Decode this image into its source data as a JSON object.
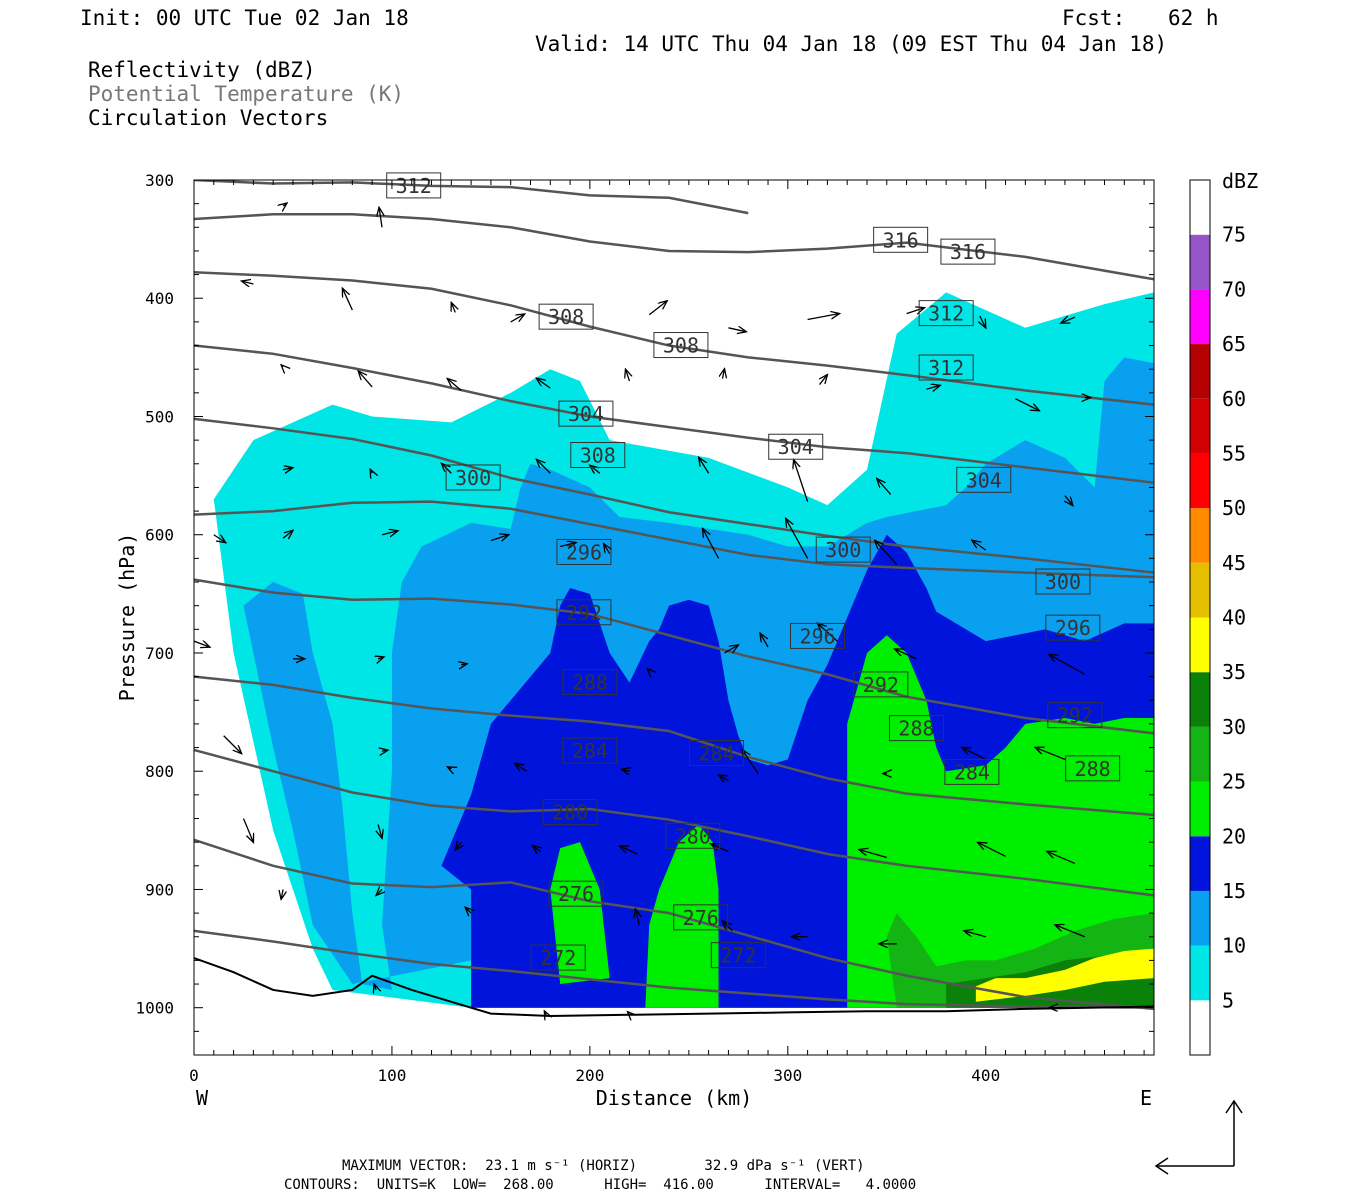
{
  "header": {
    "init": "Init: 00 UTC Tue 02 Jan 18",
    "fcst_label": "Fcst:",
    "fcst_value": "62 h",
    "valid": "Valid: 14 UTC Thu 04 Jan 18 (09 EST Thu 04 Jan 18)",
    "fields": [
      "Reflectivity (dBZ)",
      "Potential Temperature (K)",
      "Circulation Vectors"
    ]
  },
  "footer": {
    "line1": "MAXIMUM VECTOR:  23.1 m s⁻¹ (HORIZ)        32.9 dPa s⁻¹ (VERT)",
    "line2": "CONTOURS:  UNITS=K  LOW=  268.00      HIGH=  416.00      INTERVAL=   4.0000"
  },
  "chart_data": {
    "type": "heatmap",
    "xlabel": "Distance (km)",
    "ylabel": "Pressure (hPa)",
    "xlim": [
      0,
      485
    ],
    "ylim": [
      1040,
      300
    ],
    "x_ticks": [
      0,
      100,
      200,
      300,
      400
    ],
    "y_ticks": [
      300,
      400,
      500,
      600,
      700,
      800,
      900,
      1000
    ],
    "x_end_labels": [
      "W",
      "E"
    ],
    "colorbar": {
      "title": "dBZ",
      "levels": [
        5,
        10,
        15,
        20,
        25,
        30,
        35,
        40,
        45,
        50,
        55,
        60,
        65,
        70,
        75
      ],
      "colors": [
        "#ffffff",
        "#00e6e6",
        "#0aa0f0",
        "#0014dc",
        "#00ee00",
        "#14b414",
        "#0a820a",
        "#ffff00",
        "#e6be00",
        "#ff8c00",
        "#ff0000",
        "#d20000",
        "#b40000",
        "#ff00ff",
        "#9655c8",
        "#ffffff"
      ]
    },
    "reflectivity_regions": [
      {
        "dbz": 5,
        "points": [
          [
            10,
            570
          ],
          [
            30,
            520
          ],
          [
            70,
            490
          ],
          [
            90,
            500
          ],
          [
            130,
            505
          ],
          [
            160,
            480
          ],
          [
            180,
            460
          ],
          [
            195,
            470
          ],
          [
            210,
            520
          ],
          [
            260,
            535
          ],
          [
            300,
            560
          ],
          [
            320,
            575
          ],
          [
            340,
            545
          ],
          [
            355,
            430
          ],
          [
            380,
            395
          ],
          [
            420,
            425
          ],
          [
            460,
            405
          ],
          [
            485,
            395
          ],
          [
            485,
            1000
          ],
          [
            350,
            1000
          ],
          [
            180,
            1000
          ],
          [
            140,
            1000
          ],
          [
            70,
            985
          ],
          [
            60,
            950
          ],
          [
            40,
            850
          ],
          [
            20,
            700
          ]
        ]
      },
      {
        "dbz": 10,
        "points": [
          [
            25,
            660
          ],
          [
            40,
            640
          ],
          [
            55,
            650
          ],
          [
            60,
            700
          ],
          [
            70,
            760
          ],
          [
            75,
            830
          ],
          [
            80,
            920
          ],
          [
            85,
            980
          ],
          [
            100,
            985
          ],
          [
            95,
            930
          ],
          [
            100,
            800
          ],
          [
            100,
            700
          ],
          [
            105,
            640
          ],
          [
            115,
            610
          ],
          [
            140,
            590
          ],
          [
            160,
            595
          ],
          [
            165,
            560
          ],
          [
            170,
            540
          ],
          [
            180,
            545
          ],
          [
            200,
            560
          ],
          [
            215,
            585
          ],
          [
            240,
            590
          ],
          [
            280,
            600
          ],
          [
            300,
            610
          ],
          [
            320,
            610
          ],
          [
            340,
            590
          ],
          [
            350,
            585
          ],
          [
            380,
            575
          ],
          [
            390,
            560
          ],
          [
            400,
            540
          ],
          [
            420,
            520
          ],
          [
            440,
            535
          ],
          [
            455,
            560
          ],
          [
            460,
            470
          ],
          [
            470,
            450
          ],
          [
            485,
            455
          ],
          [
            485,
            1000
          ],
          [
            145,
            1000
          ],
          [
            140,
            960
          ],
          [
            80,
            980
          ],
          [
            60,
            930
          ],
          [
            50,
            850
          ],
          [
            40,
            780
          ],
          [
            30,
            700
          ]
        ]
      },
      {
        "dbz": 15,
        "points": [
          [
            125,
            880
          ],
          [
            140,
            820
          ],
          [
            150,
            760
          ],
          [
            170,
            720
          ],
          [
            180,
            700
          ],
          [
            185,
            660
          ],
          [
            190,
            645
          ],
          [
            200,
            650
          ],
          [
            210,
            700
          ],
          [
            220,
            725
          ],
          [
            230,
            690
          ],
          [
            235,
            680
          ],
          [
            240,
            660
          ],
          [
            250,
            655
          ],
          [
            260,
            660
          ],
          [
            265,
            690
          ],
          [
            270,
            740
          ],
          [
            275,
            770
          ],
          [
            280,
            790
          ],
          [
            290,
            795
          ],
          [
            300,
            790
          ],
          [
            310,
            740
          ],
          [
            320,
            710
          ],
          [
            330,
            670
          ],
          [
            340,
            630
          ],
          [
            350,
            600
          ],
          [
            360,
            615
          ],
          [
            370,
            645
          ],
          [
            375,
            665
          ],
          [
            400,
            690
          ],
          [
            430,
            680
          ],
          [
            450,
            690
          ],
          [
            470,
            675
          ],
          [
            485,
            675
          ],
          [
            485,
            1000
          ],
          [
            140,
            1000
          ],
          [
            140,
            900
          ]
        ]
      },
      {
        "dbz": 20,
        "points": [
          [
            185,
            980
          ],
          [
            180,
            900
          ],
          [
            185,
            865
          ],
          [
            195,
            860
          ],
          [
            205,
            900
          ],
          [
            210,
            975
          ]
        ]
      },
      {
        "dbz": 20,
        "points": [
          [
            228,
            1000
          ],
          [
            230,
            930
          ],
          [
            235,
            900
          ],
          [
            245,
            860
          ],
          [
            255,
            845
          ],
          [
            262,
            860
          ],
          [
            265,
            900
          ],
          [
            265,
            1000
          ]
        ]
      },
      {
        "dbz": 20,
        "points": [
          [
            330,
            1000
          ],
          [
            330,
            760
          ],
          [
            335,
            730
          ],
          [
            340,
            700
          ],
          [
            350,
            685
          ],
          [
            360,
            700
          ],
          [
            370,
            740
          ],
          [
            375,
            780
          ],
          [
            380,
            800
          ],
          [
            400,
            795
          ],
          [
            410,
            780
          ],
          [
            420,
            760
          ],
          [
            440,
            755
          ],
          [
            455,
            760
          ],
          [
            470,
            755
          ],
          [
            485,
            755
          ],
          [
            485,
            1000
          ]
        ]
      },
      {
        "dbz": 25,
        "points": [
          [
            355,
            1000
          ],
          [
            350,
            940
          ],
          [
            355,
            920
          ],
          [
            365,
            940
          ],
          [
            375,
            965
          ],
          [
            390,
            960
          ],
          [
            405,
            960
          ],
          [
            425,
            950
          ],
          [
            445,
            935
          ],
          [
            465,
            925
          ],
          [
            485,
            920
          ],
          [
            485,
            1000
          ]
        ]
      },
      {
        "dbz": 30,
        "points": [
          [
            380,
            1000
          ],
          [
            380,
            980
          ],
          [
            400,
            975
          ],
          [
            420,
            970
          ],
          [
            440,
            960
          ],
          [
            465,
            955
          ],
          [
            485,
            950
          ],
          [
            485,
            1000
          ]
        ]
      },
      {
        "dbz": 35,
        "points": [
          [
            395,
            995
          ],
          [
            395,
            982
          ],
          [
            405,
            975
          ],
          [
            420,
            975
          ],
          [
            440,
            968
          ],
          [
            455,
            958
          ],
          [
            470,
            952
          ],
          [
            485,
            950
          ],
          [
            485,
            975
          ],
          [
            460,
            978
          ],
          [
            440,
            985
          ],
          [
            420,
            990
          ]
        ]
      }
    ],
    "theta_isentropes_K": [
      312,
      316,
      316,
      308,
      308,
      312,
      312,
      304,
      304,
      308,
      304,
      300,
      296,
      300,
      300,
      292,
      296,
      296,
      288,
      292,
      292,
      284,
      284,
      288,
      288,
      284,
      280,
      280,
      276,
      276,
      272,
      272
    ],
    "theta_lines": [
      {
        "p": [
          300,
          303,
          302,
          305,
          306,
          313,
          315,
          328
        ]
      },
      {
        "p": [
          333,
          329,
          329,
          333,
          340,
          352,
          360,
          361,
          358,
          353,
          365,
          384
        ]
      },
      {
        "p": [
          378,
          381,
          385,
          392,
          406,
          424,
          440,
          450,
          457,
          465,
          478,
          490
        ]
      },
      {
        "p": [
          440,
          447,
          459,
          472,
          487,
          500,
          509,
          518,
          526,
          531,
          543,
          556
        ]
      },
      {
        "p": [
          502,
          510,
          519,
          533,
          552,
          566,
          581,
          591,
          601,
          610,
          620,
          632
        ]
      },
      {
        "p": [
          583,
          580,
          573,
          572,
          578,
          591,
          604,
          617,
          625,
          628,
          632,
          636
        ]
      },
      {
        "p": [
          638,
          649,
          655,
          654,
          659,
          667,
          685,
          703,
          718,
          737,
          755,
          768
        ]
      },
      {
        "p": [
          720,
          727,
          738,
          747,
          753,
          758,
          766,
          788,
          806,
          819,
          828,
          837
        ]
      },
      {
        "p": [
          782,
          800,
          818,
          829,
          834,
          832,
          841,
          855,
          870,
          880,
          891,
          905
        ]
      },
      {
        "p": [
          858,
          880,
          895,
          898,
          894,
          910,
          920,
          939,
          958,
          973,
          991,
          1001
        ]
      },
      {
        "p": [
          935,
          944,
          954,
          963,
          969,
          976,
          983,
          988,
          993,
          997,
          999,
          1000
        ]
      }
    ],
    "theta_line_x": [
      0,
      40,
      80,
      120,
      160,
      200,
      240,
      280,
      320,
      360,
      420,
      485
    ],
    "label_positions": [
      [
        111,
        305
      ],
      [
        357,
        351
      ],
      [
        391,
        361
      ],
      [
        188,
        416
      ],
      [
        246,
        440
      ],
      [
        380,
        413
      ],
      [
        380,
        459
      ],
      [
        198,
        498
      ],
      [
        304,
        526
      ],
      [
        204,
        533
      ],
      [
        399,
        554
      ],
      [
        141,
        552
      ],
      [
        197,
        615
      ],
      [
        328,
        613
      ],
      [
        439,
        640
      ],
      [
        197,
        666
      ],
      [
        315,
        686
      ],
      [
        444,
        679
      ],
      [
        200,
        725
      ],
      [
        347,
        727
      ],
      [
        445,
        753
      ],
      [
        200,
        783
      ],
      [
        264,
        785
      ],
      [
        365,
        764
      ],
      [
        454,
        798
      ],
      [
        393,
        801
      ],
      [
        190,
        835
      ],
      [
        252,
        855
      ],
      [
        193,
        904
      ],
      [
        256,
        924
      ],
      [
        184,
        958
      ],
      [
        275,
        956
      ]
    ],
    "surface_pressure": {
      "x": [
        0,
        20,
        40,
        60,
        80,
        90,
        110,
        130,
        150,
        180,
        220,
        260,
        300,
        340,
        380,
        420,
        485
      ],
      "p": [
        958,
        970,
        985,
        990,
        985,
        973,
        985,
        995,
        1005,
        1007,
        1006,
        1005,
        1004,
        1003,
        1003,
        1001,
        999
      ]
    }
  }
}
